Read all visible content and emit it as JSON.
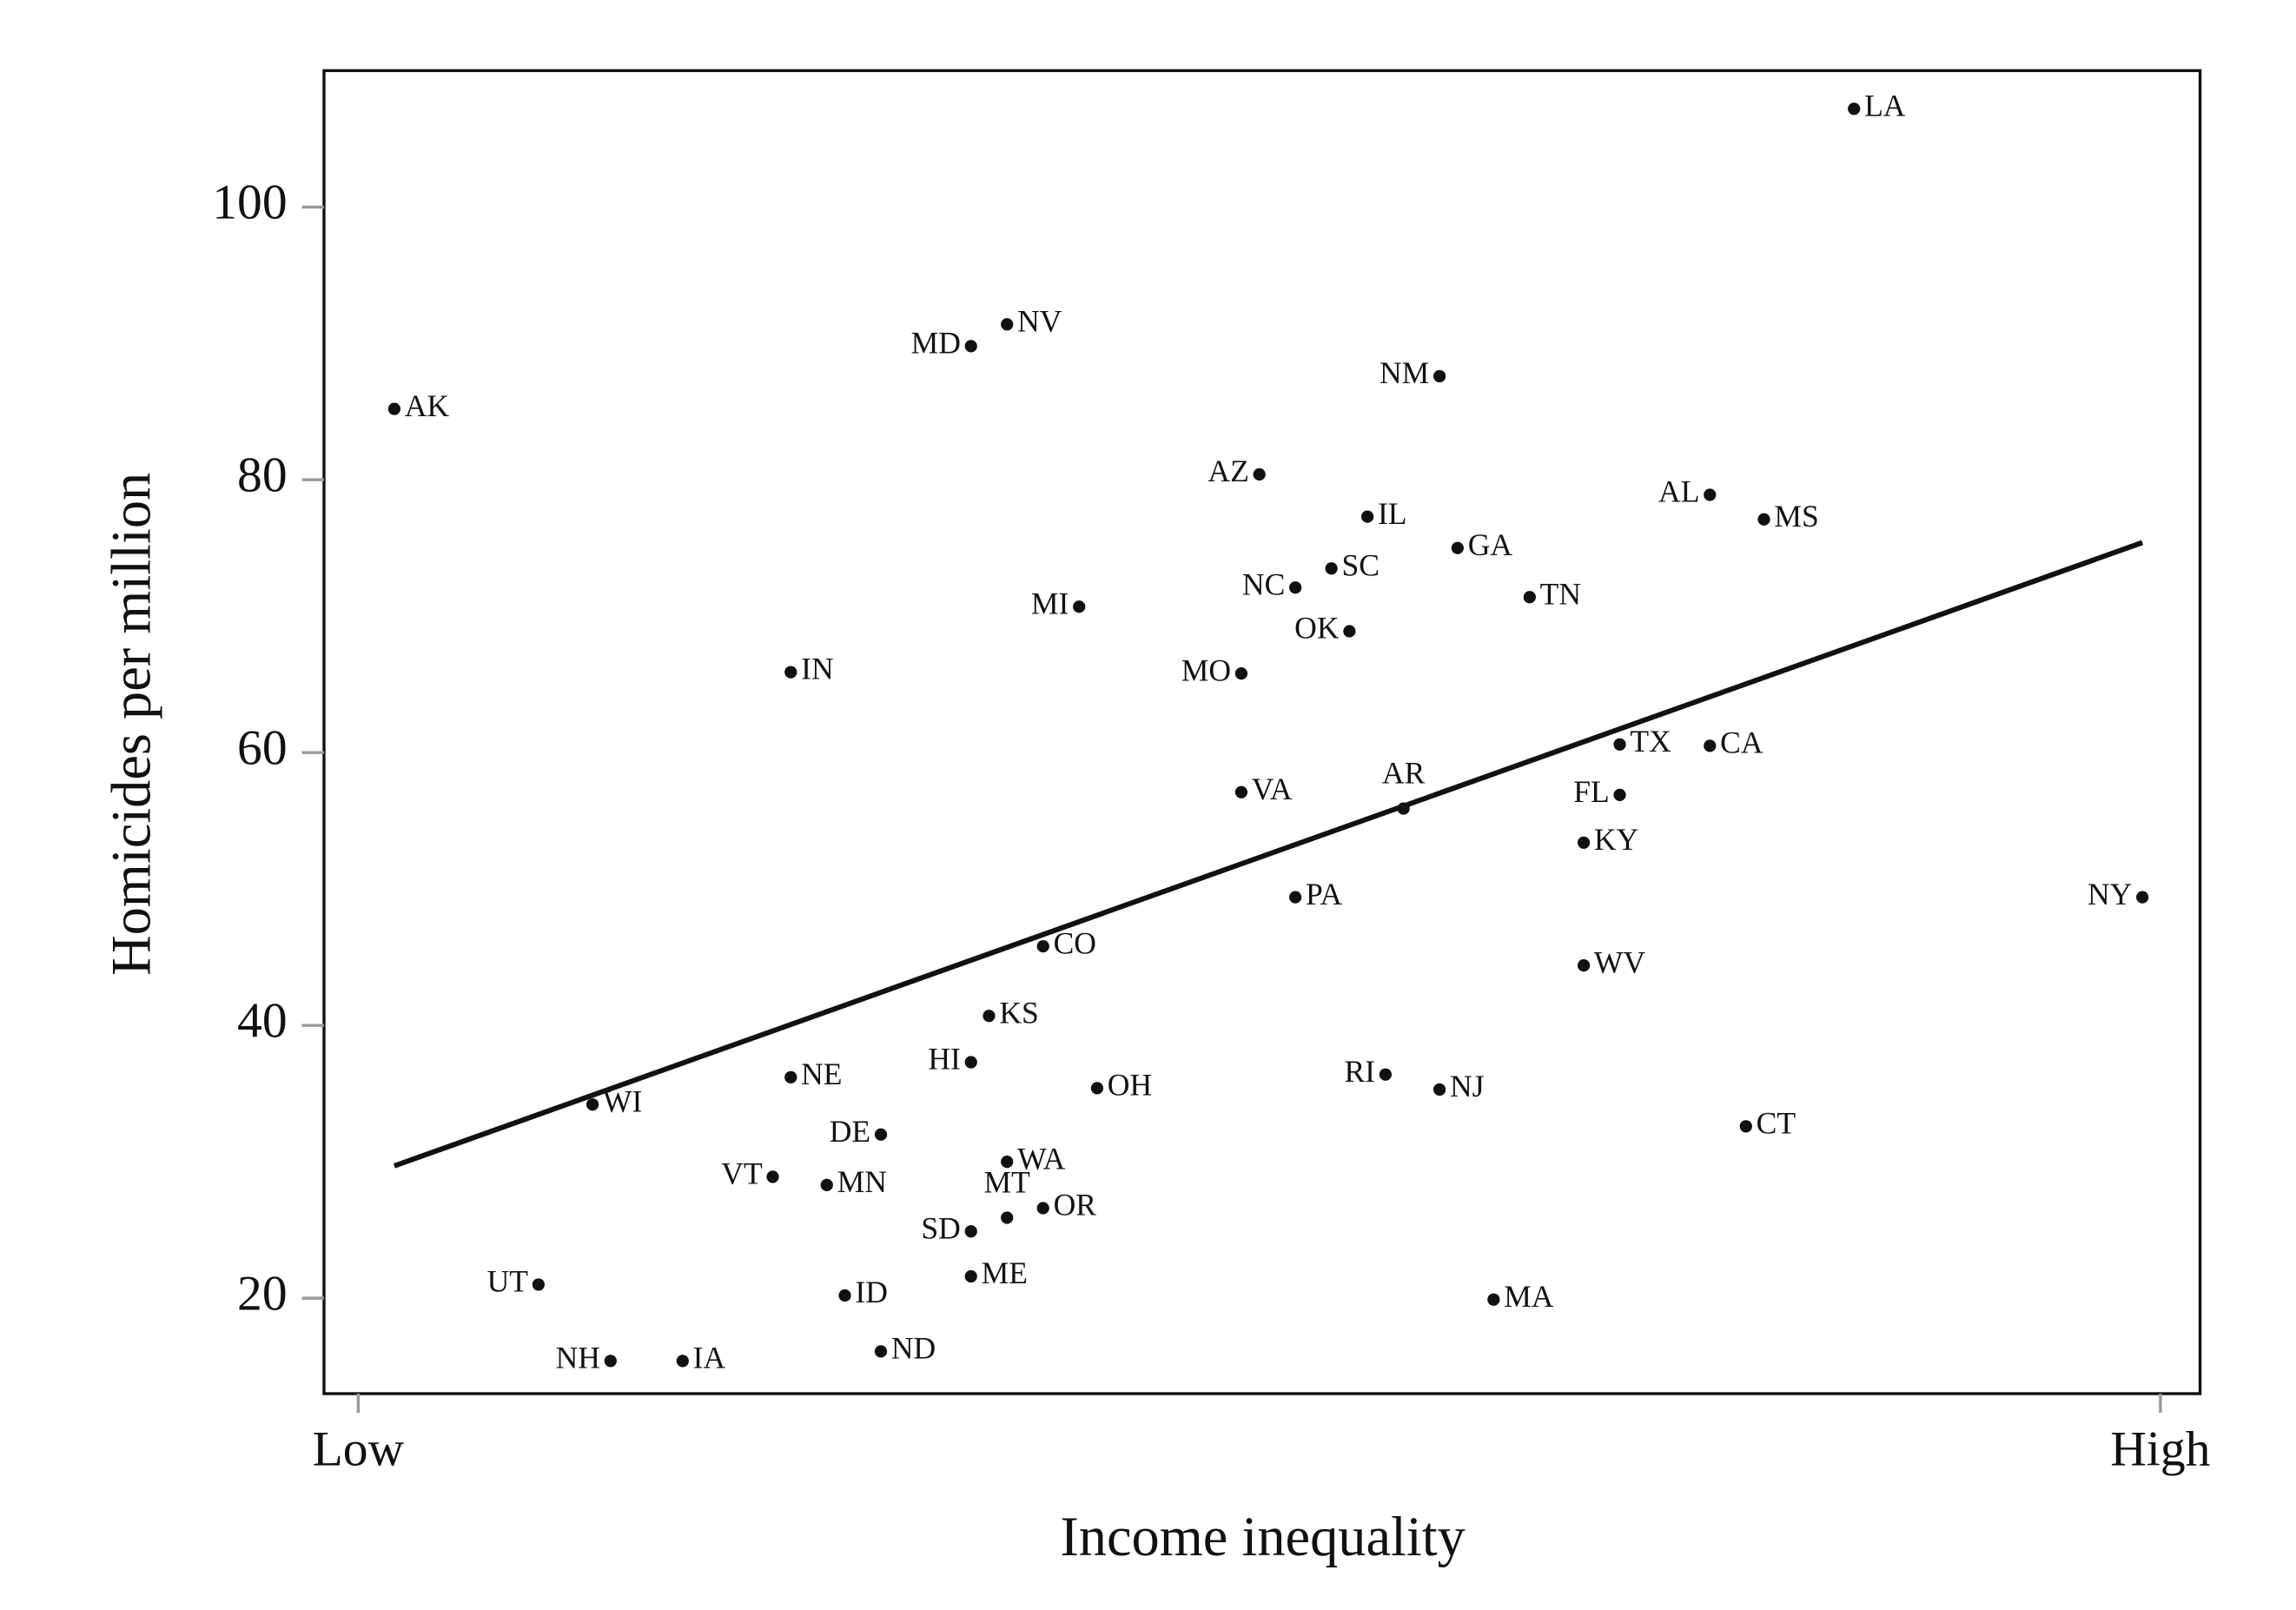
{
  "chart_data": {
    "type": "scatter",
    "xlabel": "Income inequality",
    "ylabel": "Homicides per million",
    "labels": [
      "LA",
      "NV",
      "MD",
      "AK",
      "NM",
      "AZ",
      "AL",
      "MS",
      "IL",
      "GA",
      "SC",
      "NC",
      "TN",
      "MI",
      "OK",
      "MO",
      "IN",
      "TX",
      "CA",
      "VA",
      "AR",
      "FL",
      "KY",
      "NY",
      "PA",
      "CO",
      "WV",
      "KS",
      "HI",
      "NE",
      "RI",
      "OH",
      "NJ",
      "WI",
      "DE",
      "CT",
      "WA",
      "VT",
      "MN",
      "OR",
      "MT",
      "SD",
      "ME",
      "UT",
      "ID",
      "MA",
      "ND",
      "NH",
      "IA"
    ],
    "x": [
      0.83,
      0.36,
      0.34,
      0.02,
      0.6,
      0.5,
      0.75,
      0.78,
      0.56,
      0.61,
      0.54,
      0.52,
      0.65,
      0.4,
      0.55,
      0.49,
      0.24,
      0.7,
      0.75,
      0.49,
      0.58,
      0.7,
      0.68,
      0.99,
      0.52,
      0.38,
      0.68,
      0.35,
      0.34,
      0.24,
      0.57,
      0.41,
      0.6,
      0.13,
      0.29,
      0.77,
      0.36,
      0.23,
      0.26,
      0.38,
      0.36,
      0.34,
      0.34,
      0.1,
      0.27,
      0.63,
      0.29,
      0.14,
      0.18
    ],
    "y": [
      107.2,
      91.4,
      89.8,
      85.2,
      87.6,
      80.4,
      78.9,
      77.1,
      77.3,
      75.0,
      73.5,
      72.1,
      71.4,
      70.7,
      68.9,
      65.8,
      65.9,
      60.6,
      60.5,
      57.1,
      55.9,
      56.9,
      53.4,
      49.4,
      49.4,
      45.8,
      44.4,
      40.7,
      37.3,
      36.2,
      36.4,
      35.4,
      35.3,
      34.2,
      32.0,
      32.6,
      30.0,
      28.9,
      28.3,
      26.6,
      25.9,
      24.9,
      21.6,
      21.0,
      20.2,
      19.9,
      16.1,
      15.4,
      15.4
    ],
    "trend": {
      "x": [
        0.02,
        0.99
      ],
      "y": [
        29.7,
        75.4
      ]
    },
    "color": "#111111",
    "xlim": [
      -0.019,
      1.022
    ],
    "xticks": [
      {
        "value": 0,
        "label": "Low"
      },
      {
        "value": 1,
        "label": "High"
      }
    ],
    "ylim": [
      13,
      110
    ],
    "yticks": [
      20,
      40,
      60,
      80,
      100
    ]
  }
}
